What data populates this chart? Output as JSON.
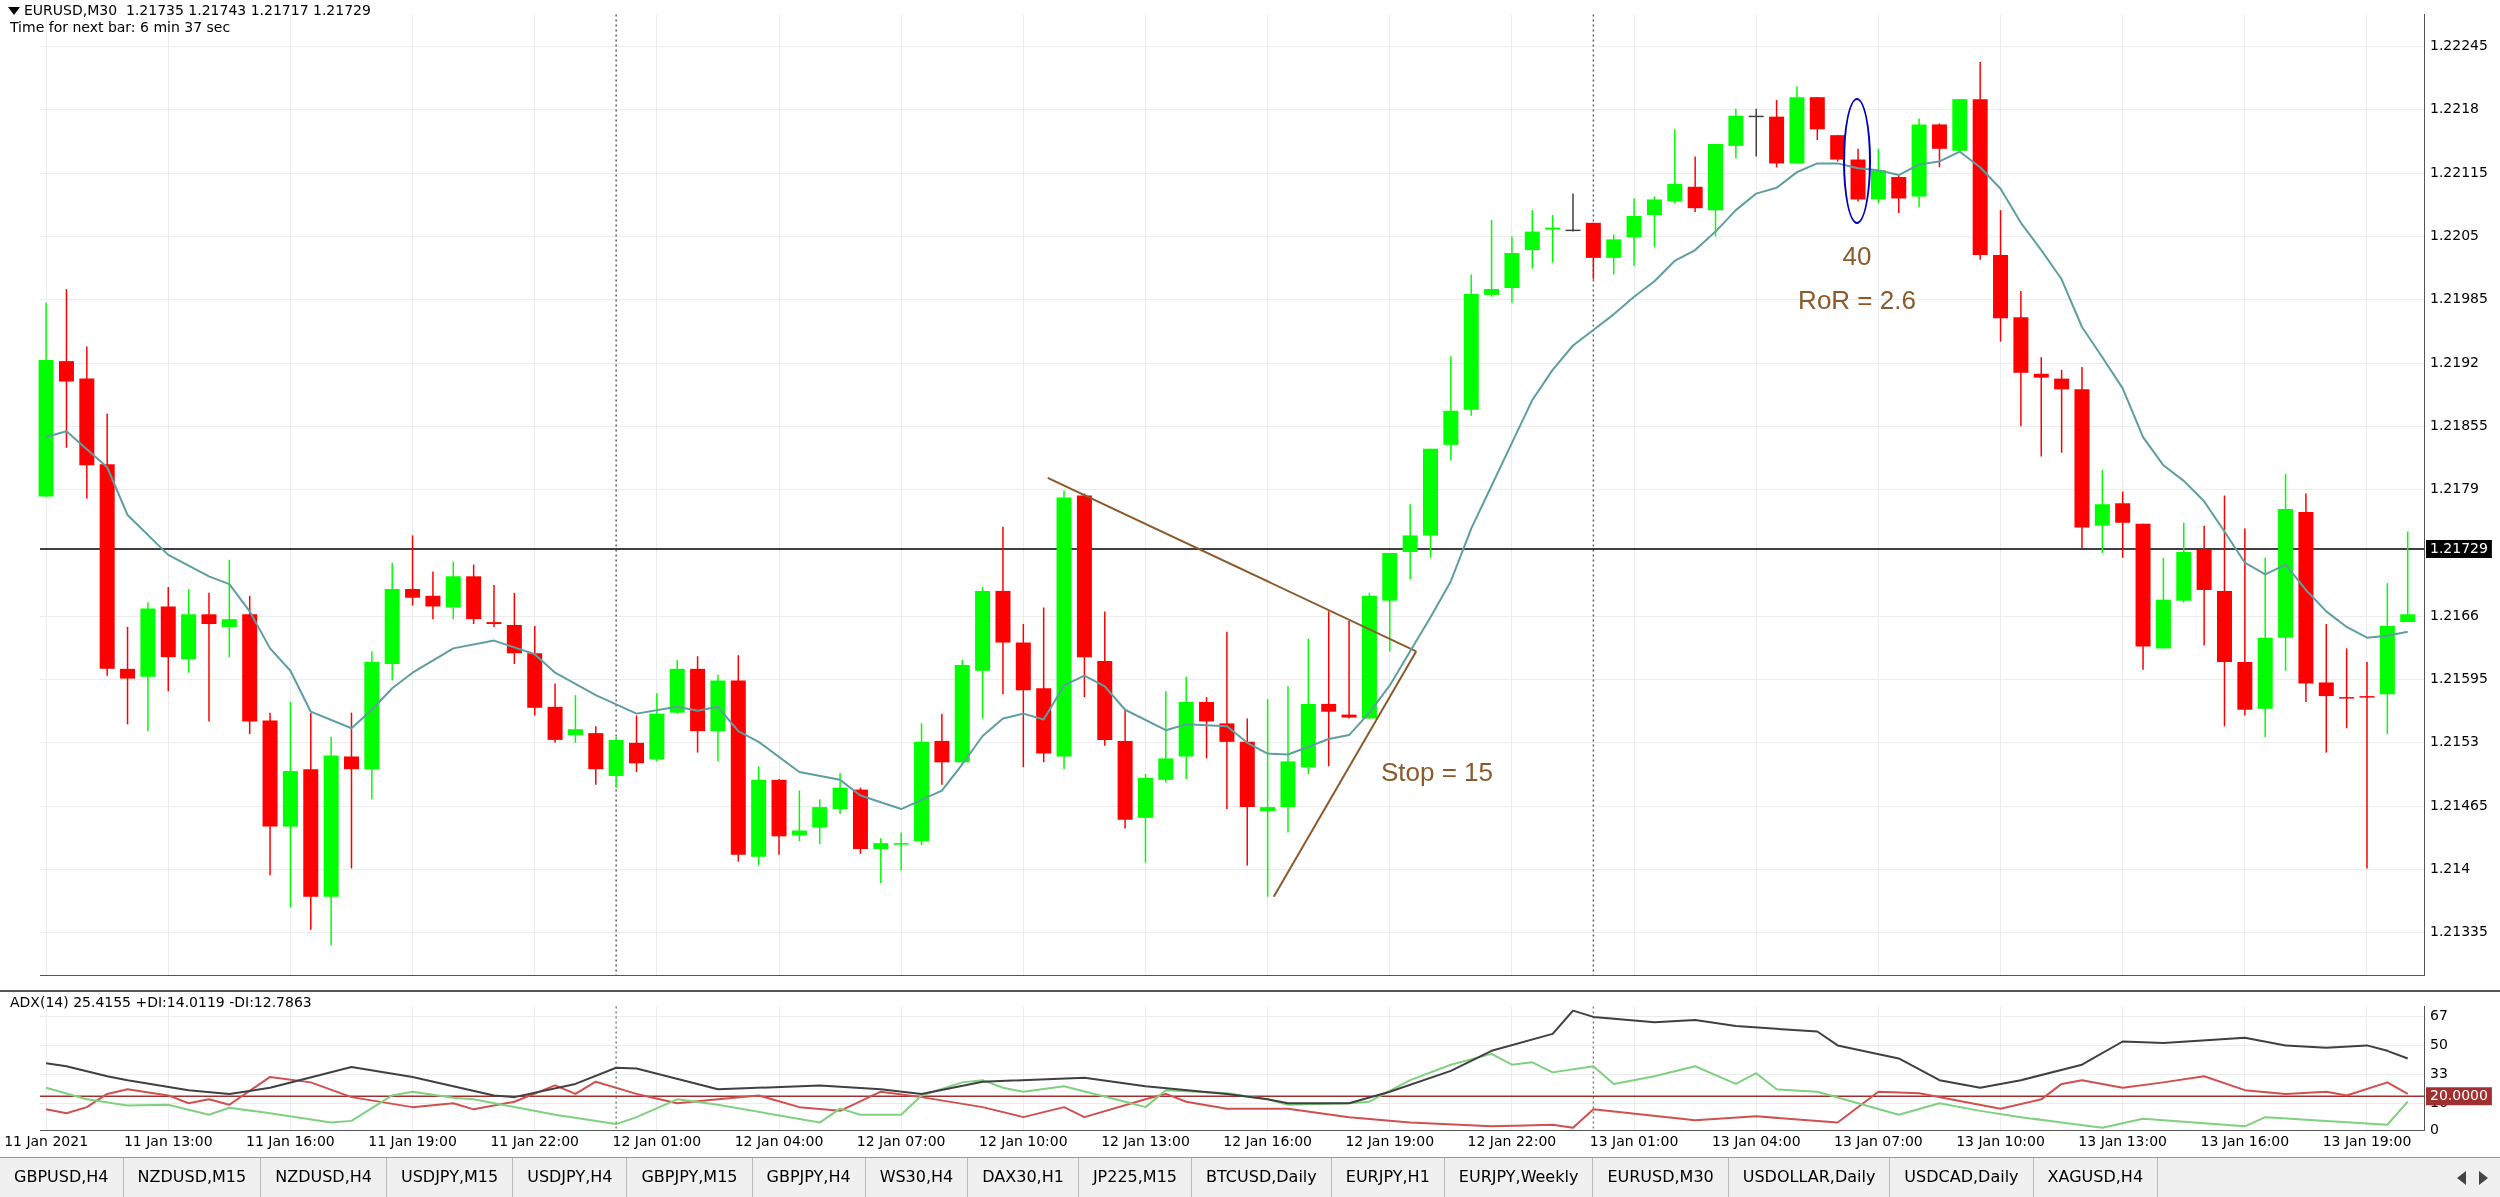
{
  "chart_data": [
    {
      "type": "candlestick",
      "title": "EURUSD,M30  1.21735 1.21743 1.21717 1.21729",
      "subtitle": "Time for next bar: 6 min 37 sec",
      "x": [
        "2021-01-11T10:00",
        "2021-01-11T10:30",
        "2021-01-11T11:00",
        "2021-01-11T11:30",
        "2021-01-11T12:00",
        "2021-01-11T12:30",
        "2021-01-11T13:00",
        "2021-01-11T13:30",
        "2021-01-11T14:00",
        "2021-01-11T14:30",
        "2021-01-11T15:00",
        "2021-01-11T15:30",
        "2021-01-11T16:00",
        "2021-01-11T16:30",
        "2021-01-11T17:00",
        "2021-01-11T17:30",
        "2021-01-11T18:00",
        "2021-01-11T18:30",
        "2021-01-11T19:00",
        "2021-01-11T19:30",
        "2021-01-11T20:00",
        "2021-01-11T20:30",
        "2021-01-11T21:00",
        "2021-01-11T21:30",
        "2021-01-11T22:00",
        "2021-01-11T22:30",
        "2021-01-11T23:00",
        "2021-01-11T23:30",
        "2021-01-12T00:00",
        "2021-01-12T00:30",
        "2021-01-12T01:00",
        "2021-01-12T01:30",
        "2021-01-12T02:00",
        "2021-01-12T02:30",
        "2021-01-12T03:00",
        "2021-01-12T03:30",
        "2021-01-12T04:00",
        "2021-01-12T04:30",
        "2021-01-12T05:00",
        "2021-01-12T05:30",
        "2021-01-12T06:00",
        "2021-01-12T06:30",
        "2021-01-12T07:00",
        "2021-01-12T07:30",
        "2021-01-12T08:00",
        "2021-01-12T08:30",
        "2021-01-12T09:00",
        "2021-01-12T09:30",
        "2021-01-12T10:00",
        "2021-01-12T10:30",
        "2021-01-12T11:00",
        "2021-01-12T11:30",
        "2021-01-12T12:00",
        "2021-01-12T12:30",
        "2021-01-12T13:00",
        "2021-01-12T13:30",
        "2021-01-12T14:00",
        "2021-01-12T14:30",
        "2021-01-12T15:00",
        "2021-01-12T15:30",
        "2021-01-12T16:00",
        "2021-01-12T16:30",
        "2021-01-12T17:00",
        "2021-01-12T17:30",
        "2021-01-12T18:00",
        "2021-01-12T18:30",
        "2021-01-12T19:00",
        "2021-01-12T19:30",
        "2021-01-12T20:00",
        "2021-01-12T20:30",
        "2021-01-12T21:00",
        "2021-01-12T21:30",
        "2021-01-12T22:00",
        "2021-01-12T22:30",
        "2021-01-12T23:00",
        "2021-01-12T23:30",
        "2021-01-13T00:00",
        "2021-01-13T00:30",
        "2021-01-13T01:00",
        "2021-01-13T01:30",
        "2021-01-13T02:00",
        "2021-01-13T02:30",
        "2021-01-13T03:00",
        "2021-01-13T03:30",
        "2021-01-13T04:00",
        "2021-01-13T04:30",
        "2021-01-13T05:00",
        "2021-01-13T05:30",
        "2021-01-13T06:00",
        "2021-01-13T06:30",
        "2021-01-13T07:00",
        "2021-01-13T07:30",
        "2021-01-13T08:00",
        "2021-01-13T08:30",
        "2021-01-13T09:00",
        "2021-01-13T09:30",
        "2021-01-13T10:00",
        "2021-01-13T10:30",
        "2021-01-13T11:00",
        "2021-01-13T11:30",
        "2021-01-13T12:00",
        "2021-01-13T12:30",
        "2021-01-13T13:00",
        "2021-01-13T13:30",
        "2021-01-13T14:00",
        "2021-01-13T14:30",
        "2021-01-13T15:00",
        "2021-01-13T15:30",
        "2021-01-13T16:00",
        "2021-01-13T16:30",
        "2021-01-13T17:00",
        "2021-01-13T17:30",
        "2021-01-13T18:00",
        "2021-01-13T18:30",
        "2021-01-13T19:00",
        "2021-01-13T19:30",
        "2021-01-13T20:00"
      ],
      "ohlc": [
        [
          1.21783,
          1.21982,
          1.21783,
          1.21923
        ],
        [
          1.21922,
          1.21996,
          1.21833,
          1.21901
        ],
        [
          1.21904,
          1.21937,
          1.21781,
          1.21815
        ],
        [
          1.21816,
          1.21868,
          1.21599,
          1.21606
        ],
        [
          1.21606,
          1.21649,
          1.21549,
          1.21596
        ],
        [
          1.21598,
          1.21674,
          1.21542,
          1.21668
        ],
        [
          1.2167,
          1.2169,
          1.21583,
          1.21618
        ],
        [
          1.21616,
          1.21688,
          1.21602,
          1.21662
        ],
        [
          1.21662,
          1.21684,
          1.21552,
          1.21652
        ],
        [
          1.21649,
          1.21718,
          1.21618,
          1.21657
        ],
        [
          1.21662,
          1.21681,
          1.21539,
          1.21552
        ],
        [
          1.21553,
          1.21561,
          1.21394,
          1.21444
        ],
        [
          1.21444,
          1.21572,
          1.21361,
          1.21501
        ],
        [
          1.21503,
          1.21561,
          1.21338,
          1.21372
        ],
        [
          1.21372,
          1.21536,
          1.21322,
          1.21517
        ],
        [
          1.21516,
          1.21561,
          1.21401,
          1.21503
        ],
        [
          1.21503,
          1.21624,
          1.21472,
          1.21613
        ],
        [
          1.21611,
          1.21715,
          1.21594,
          1.21688
        ],
        [
          1.21688,
          1.21743,
          1.21671,
          1.21679
        ],
        [
          1.21681,
          1.21706,
          1.21657,
          1.2167
        ],
        [
          1.21669,
          1.21716,
          1.21657,
          1.21701
        ],
        [
          1.21701,
          1.21713,
          1.21652,
          1.21657
        ],
        [
          1.21654,
          1.21692,
          1.21649,
          1.21652
        ],
        [
          1.21651,
          1.21684,
          1.21611,
          1.21622
        ],
        [
          1.21622,
          1.2165,
          1.21558,
          1.21566
        ],
        [
          1.21567,
          1.21591,
          1.2153,
          1.21533
        ],
        [
          1.21538,
          1.21579,
          1.2153,
          1.21544
        ],
        [
          1.2154,
          1.21547,
          1.21487,
          1.21503
        ],
        [
          1.21496,
          1.21536,
          1.21484,
          1.21533
        ],
        [
          1.2153,
          1.21558,
          1.215,
          1.21509
        ],
        [
          1.21513,
          1.21581,
          1.21511,
          1.2156
        ],
        [
          1.21561,
          1.21615,
          1.2156,
          1.21606
        ],
        [
          1.21606,
          1.21619,
          1.2152,
          1.21542
        ],
        [
          1.21542,
          1.216,
          1.21511,
          1.21594
        ],
        [
          1.21594,
          1.2162,
          1.21408,
          1.21415
        ],
        [
          1.21413,
          1.21506,
          1.21404,
          1.21492
        ],
        [
          1.21492,
          1.21493,
          1.21415,
          1.21434
        ],
        [
          1.21435,
          1.21481,
          1.21429,
          1.2144
        ],
        [
          1.21443,
          1.21472,
          1.21426,
          1.21464
        ],
        [
          1.21462,
          1.21499,
          1.21457,
          1.21484
        ],
        [
          1.21482,
          1.21484,
          1.21416,
          1.21421
        ],
        [
          1.21421,
          1.21432,
          1.21386,
          1.21427
        ],
        [
          1.21426,
          1.21438,
          1.21399,
          1.21427
        ],
        [
          1.21429,
          1.2155,
          1.21425,
          1.21531
        ],
        [
          1.21532,
          1.2156,
          1.21487,
          1.2151
        ],
        [
          1.2151,
          1.21615,
          1.21508,
          1.2161
        ],
        [
          1.21604,
          1.2169,
          1.21555,
          1.21686
        ],
        [
          1.21686,
          1.21752,
          1.2158,
          1.21633
        ],
        [
          1.21633,
          1.21652,
          1.21505,
          1.21584
        ],
        [
          1.21586,
          1.21669,
          1.2151,
          1.21519
        ],
        [
          1.21516,
          1.21789,
          1.21503,
          1.21782
        ],
        [
          1.21784,
          1.21786,
          1.21577,
          1.21618
        ],
        [
          1.21614,
          1.21665,
          1.21527,
          1.21533
        ],
        [
          1.21532,
          1.21564,
          1.21442,
          1.21451
        ],
        [
          1.21453,
          1.21498,
          1.21407,
          1.21494
        ],
        [
          1.21492,
          1.21583,
          1.21489,
          1.21514
        ],
        [
          1.21516,
          1.21598,
          1.21493,
          1.21572
        ],
        [
          1.21572,
          1.21577,
          1.21514,
          1.21552
        ],
        [
          1.2155,
          1.21644,
          1.21462,
          1.21531
        ],
        [
          1.21531,
          1.21555,
          1.21404,
          1.21464
        ],
        [
          1.2146,
          1.21575,
          1.21372,
          1.21464
        ],
        [
          1.21464,
          1.21588,
          1.21438,
          1.21511
        ],
        [
          1.21505,
          1.21637,
          1.21498,
          1.2157
        ],
        [
          1.2157,
          1.21665,
          1.21506,
          1.21562
        ],
        [
          1.21559,
          1.21655,
          1.21555,
          1.21556
        ],
        [
          1.21555,
          1.21684,
          1.21555,
          1.21681
        ],
        [
          1.21676,
          1.21725,
          1.21624,
          1.21725
        ],
        [
          1.21726,
          1.21775,
          1.21698,
          1.21743
        ],
        [
          1.21743,
          1.21832,
          1.2172,
          1.21832
        ],
        [
          1.21836,
          1.21927,
          1.2182,
          1.21871
        ],
        [
          1.21872,
          1.22011,
          1.21866,
          1.21991
        ],
        [
          1.2199,
          1.22067,
          1.21988,
          1.21996
        ],
        [
          1.21997,
          1.2205,
          1.21982,
          1.22033
        ],
        [
          1.22036,
          1.22077,
          1.22017,
          1.22055
        ],
        [
          1.22057,
          1.22072,
          1.22023,
          1.22059
        ],
        [
          1.22057,
          1.22094,
          1.22055,
          1.22057
        ],
        [
          1.22064,
          1.22064,
          1.22006,
          1.22028
        ],
        [
          1.22028,
          1.22052,
          1.22011,
          1.22047
        ],
        [
          1.22049,
          1.22089,
          1.2202,
          1.22071
        ],
        [
          1.22072,
          1.22091,
          1.22039,
          1.22088
        ],
        [
          1.22086,
          1.2216,
          1.22084,
          1.22104
        ],
        [
          1.22101,
          1.22132,
          1.22075,
          1.22079
        ],
        [
          1.22077,
          1.22145,
          1.2205,
          1.22145
        ],
        [
          1.22143,
          1.22181,
          1.2213,
          1.22174
        ],
        [
          1.22174,
          1.22181,
          1.22132,
          1.22174
        ],
        [
          1.22173,
          1.2219,
          1.22121,
          1.22125
        ],
        [
          1.22125,
          1.22204,
          1.22125,
          1.22193
        ],
        [
          1.22193,
          1.22193,
          1.22149,
          1.2216
        ],
        [
          1.22154,
          1.22154,
          1.22127,
          1.22129
        ],
        [
          1.22129,
          1.2214,
          1.22086,
          1.22088
        ],
        [
          1.22088,
          1.2214,
          1.22084,
          1.22118
        ],
        [
          1.22111,
          1.22113,
          1.22074,
          1.22089
        ],
        [
          1.22091,
          1.22171,
          1.2208,
          1.22165
        ],
        [
          1.22165,
          1.22166,
          1.22121,
          1.2214
        ],
        [
          1.22138,
          1.22191,
          1.22137,
          1.22191
        ],
        [
          1.22191,
          1.22229,
          1.22026,
          1.22031
        ],
        [
          1.22031,
          1.22077,
          1.21942,
          1.21966
        ],
        [
          1.21967,
          1.21994,
          1.21855,
          1.2191
        ],
        [
          1.21909,
          1.21926,
          1.21824,
          1.21905
        ],
        [
          1.21904,
          1.21913,
          1.21828,
          1.21893
        ],
        [
          1.21893,
          1.21916,
          1.2173,
          1.21751
        ],
        [
          1.21753,
          1.2181,
          1.21725,
          1.21775
        ],
        [
          1.21776,
          1.21788,
          1.2172,
          1.21756
        ],
        [
          1.21755,
          1.21755,
          1.21605,
          1.21629
        ],
        [
          1.21627,
          1.2172,
          1.21627,
          1.21677
        ],
        [
          1.21676,
          1.21756,
          1.21674,
          1.21726
        ],
        [
          1.21728,
          1.21753,
          1.2163,
          1.21687
        ],
        [
          1.21686,
          1.21784,
          1.21547,
          1.21613
        ],
        [
          1.21613,
          1.2175,
          1.21558,
          1.21564
        ],
        [
          1.21565,
          1.2172,
          1.21536,
          1.21638
        ],
        [
          1.21638,
          1.21806,
          1.21604,
          1.2177
        ],
        [
          1.21767,
          1.21786,
          1.21572,
          1.21591
        ],
        [
          1.21592,
          1.21652,
          1.2152,
          1.21578
        ],
        [
          1.21577,
          1.21627,
          1.21545,
          1.21576
        ],
        [
          1.21578,
          1.21613,
          1.21401,
          1.21577
        ],
        [
          1.2158,
          1.21694,
          1.21539,
          1.2165
        ],
        [
          1.21654,
          1.21747,
          1.21654,
          1.21662
        ]
      ],
      "series": [
        {
          "type": "line",
          "color": "#5f9ea0",
          "x": [
            "2021-01-11T10:00",
            "2021-01-11T10:30",
            "2021-01-11T11:30",
            "2021-01-11T12:00",
            "2021-01-11T13:00",
            "2021-01-11T14:00",
            "2021-01-11T14:30",
            "2021-01-11T15:00",
            "2021-01-11T15:30",
            "2021-01-11T16:00",
            "2021-01-11T16:30",
            "2021-01-11T17:30",
            "2021-01-11T18:00",
            "2021-01-11T18:30",
            "2021-01-11T19:00",
            "2021-01-11T20:00",
            "2021-01-11T21:00",
            "2021-01-11T22:00",
            "2021-01-11T22:30",
            "2021-01-11T23:30",
            "2021-01-12T00:30",
            "2021-01-12T01:30",
            "2021-01-12T02:00",
            "2021-01-12T02:30",
            "2021-01-12T03:00",
            "2021-01-12T03:30",
            "2021-01-12T04:30",
            "2021-01-12T05:30",
            "2021-01-12T06:00",
            "2021-01-12T07:00",
            "2021-01-12T08:00",
            "2021-01-12T08:30",
            "2021-01-12T09:00",
            "2021-01-12T09:30",
            "2021-01-12T10:00",
            "2021-01-12T10:30",
            "2021-01-12T11:00",
            "2021-01-12T11:30",
            "2021-01-12T12:00",
            "2021-01-12T12:30",
            "2021-01-12T13:30",
            "2021-01-12T14:00",
            "2021-01-12T15:00",
            "2021-01-12T15:30",
            "2021-01-12T16:00",
            "2021-01-12T16:30",
            "2021-01-12T17:30",
            "2021-01-12T18:00",
            "2021-01-12T18:30",
            "2021-01-12T19:00",
            "2021-01-12T19:30",
            "2021-01-12T20:00",
            "2021-01-12T20:30",
            "2021-01-12T21:00",
            "2021-01-12T21:30",
            "2021-01-12T22:00",
            "2021-01-12T22:30",
            "2021-01-12T23:00",
            "2021-01-12T23:30",
            "2021-01-13T00:00",
            "2021-01-13T00:30",
            "2021-01-13T01:00",
            "2021-01-13T01:30",
            "2021-01-13T02:00",
            "2021-01-13T02:30",
            "2021-01-13T03:00",
            "2021-01-13T03:30",
            "2021-01-13T04:00",
            "2021-01-13T04:30",
            "2021-01-13T05:00",
            "2021-01-13T05:30",
            "2021-01-13T06:00",
            "2021-01-13T06:30",
            "2021-01-13T07:00",
            "2021-01-13T07:30",
            "2021-01-13T08:00",
            "2021-01-13T08:30",
            "2021-01-13T09:00",
            "2021-01-13T09:30",
            "2021-01-13T10:00",
            "2021-01-13T10:30",
            "2021-01-13T11:00",
            "2021-01-13T11:30",
            "2021-01-13T12:00",
            "2021-01-13T12:30",
            "2021-01-13T13:00",
            "2021-01-13T13:30",
            "2021-01-13T14:00",
            "2021-01-13T14:30",
            "2021-01-13T15:00",
            "2021-01-13T15:30",
            "2021-01-13T16:00",
            "2021-01-13T16:30",
            "2021-01-13T17:00",
            "2021-01-13T17:30",
            "2021-01-13T18:00",
            "2021-01-13T18:30",
            "2021-01-13T19:00",
            "2021-01-13T19:30",
            "2021-01-13T20:00"
          ],
          "values": [
            1.21844,
            1.2185,
            1.21813,
            1.21764,
            1.21723,
            1.21701,
            1.21693,
            1.21665,
            1.21627,
            1.21604,
            1.21562,
            1.21545,
            1.21564,
            1.21586,
            1.21602,
            1.21627,
            1.21635,
            1.21621,
            1.21602,
            1.21579,
            1.2156,
            1.21567,
            1.21563,
            1.21567,
            1.21542,
            1.21531,
            1.215,
            1.21492,
            1.21476,
            1.21462,
            1.21481,
            1.21508,
            1.21537,
            1.21555,
            1.2156,
            1.21554,
            1.21589,
            1.21599,
            1.21588,
            1.21564,
            1.21543,
            1.21549,
            1.21547,
            1.2153,
            1.21519,
            1.21518,
            1.21534,
            1.21538,
            1.21561,
            1.21589,
            1.21624,
            1.21659,
            1.21696,
            1.2175,
            1.21794,
            1.21838,
            1.21882,
            1.21913,
            1.21938,
            1.21954,
            1.2197,
            1.21988,
            1.22004,
            1.22025,
            1.22036,
            1.22055,
            1.22077,
            1.22094,
            1.221,
            1.22116,
            1.22125,
            1.22125,
            1.2212,
            1.22118,
            1.22113,
            1.22124,
            1.22127,
            1.22137,
            1.22121,
            1.22099,
            1.22064,
            1.22036,
            1.22006,
            1.21957,
            1.21926,
            1.21894,
            1.21844,
            1.21815,
            1.21799,
            1.21778,
            1.21747,
            1.21715,
            1.21703,
            1.21713,
            1.21687,
            1.21665,
            1.21649,
            1.21638,
            1.2164,
            1.21644
          ]
        },
        {
          "type": "line",
          "color": "#8b5a2b",
          "x": [
            "2021-01-12T10:36",
            "2021-01-12T19:39"
          ],
          "values": [
            1.21802,
            1.21624
          ]
        },
        {
          "type": "line",
          "color": "#8b5a2b",
          "x": [
            "2021-01-12T16:09",
            "2021-01-12T19:39"
          ],
          "values": [
            1.21372,
            1.21624
          ]
        }
      ],
      "xlim": [
        "2021-01-11T09:51",
        "2021-01-13T20:24"
      ],
      "xticks": [
        {
          "value": "2021-01-11T10:00",
          "label": null
        },
        {
          "value": "2021-01-11T13:00",
          "label": null
        },
        {
          "value": "2021-01-11T16:00",
          "label": null
        },
        {
          "value": "2021-01-11T19:00",
          "label": null
        },
        {
          "value": "2021-01-11T22:00",
          "label": null
        },
        {
          "value": "2021-01-12T01:00",
          "label": null
        },
        {
          "value": "2021-01-12T04:00",
          "label": null
        },
        {
          "value": "2021-01-12T07:00",
          "label": null
        },
        {
          "value": "2021-01-12T10:00",
          "label": null
        },
        {
          "value": "2021-01-12T13:00",
          "label": null
        },
        {
          "value": "2021-01-12T16:00",
          "label": null
        },
        {
          "value": "2021-01-12T19:00",
          "label": null
        },
        {
          "value": "2021-01-12T22:00",
          "label": null
        },
        {
          "value": "2021-01-13T01:00",
          "label": null
        },
        {
          "value": "2021-01-13T04:00",
          "label": null
        },
        {
          "value": "2021-01-13T07:00",
          "label": null
        },
        {
          "value": "2021-01-13T10:00",
          "label": null
        },
        {
          "value": "2021-01-13T13:00",
          "label": null
        },
        {
          "value": "2021-01-13T16:00",
          "label": null
        },
        {
          "value": "2021-01-13T19:00",
          "label": null
        }
      ],
      "ylim": [
        1.21291,
        1.22278
      ],
      "yticks": [
        1.21335,
        1.214,
        1.21465,
        1.2153,
        1.21595,
        1.2166,
        1.2179,
        1.21855,
        1.2192,
        1.21985,
        1.2205,
        1.22115,
        1.2218,
        1.22245
      ],
      "ref_lines": [
        {
          "axis": "x",
          "value": "2021-01-12T00:00",
          "color": "#606060",
          "line_style": "dotted"
        },
        {
          "axis": "x",
          "value": "2021-01-13T00:00",
          "color": "#606060",
          "line_style": "dotted"
        },
        {
          "axis": "y",
          "value": 1.21729,
          "label": "1.21729",
          "color": "#000000"
        }
      ],
      "annotations": [
        "Stop = 15",
        "40",
        "RoR = 2.6",
        "GBPUSD,H4",
        "NZDUSD,M15",
        "NZDUSD,H4",
        "USDJPY,M15",
        "USDJPY,H4",
        "GBPJPY,M15",
        "GBPJPY,H4",
        "WS30,H4",
        "DAX30,H1",
        "JP225,M15",
        "BTCUSD,Daily",
        "EURJPY,H1",
        "EURJPY,Weekly",
        "EURUSD,M30",
        "USDOLLAR,Daily",
        "USDCAD,Daily",
        "XAGUSD,H4"
      ],
      "grid": true,
      "marker": "none",
      "tick_labels": "y"
    },
    {
      "type": "line",
      "title": "ADX(14) 25.4155 +DI:14.0119 -DI:12.7863",
      "series": [
        {
          "color": "#404040",
          "x": [
            "2021-01-11T10:00",
            "2021-01-11T10:30",
            "2021-01-11T11:30",
            "2021-01-11T12:00",
            "2021-01-11T13:30",
            "2021-01-11T14:30",
            "2021-01-11T15:30",
            "2021-01-11T17:30",
            "2021-01-11T19:00",
            "2021-01-11T20:00",
            "2021-01-11T21:00",
            "2021-01-11T21:30",
            "2021-01-11T23:00",
            "2021-01-12T00:00",
            "2021-01-12T00:30",
            "2021-01-12T02:30",
            "2021-01-12T05:00",
            "2021-01-12T06:30",
            "2021-01-12T07:30",
            "2021-01-12T09:00",
            "2021-01-12T11:30",
            "2021-01-12T13:00",
            "2021-01-12T15:00",
            "2021-01-12T16:00",
            "2021-01-12T16:30",
            "2021-01-12T18:00",
            "2021-01-12T19:00",
            "2021-01-12T20:30",
            "2021-01-12T21:30",
            "2021-01-12T23:00",
            "2021-01-12T23:30",
            "2021-01-13T00:00",
            "2021-01-13T01:30",
            "2021-01-13T02:30",
            "2021-01-13T03:30",
            "2021-01-13T05:30",
            "2021-01-13T06:00",
            "2021-01-13T07:30",
            "2021-01-13T08:30",
            "2021-01-13T09:30",
            "2021-01-13T10:30",
            "2021-01-13T12:00",
            "2021-01-13T13:00",
            "2021-01-13T14:00",
            "2021-01-13T16:00",
            "2021-01-13T17:00",
            "2021-01-13T18:00",
            "2021-01-13T19:00",
            "2021-01-13T19:30",
            "2021-01-13T20:00"
          ],
          "values": [
            39.5,
            37.7,
            31.8,
            29.5,
            23.6,
            21.4,
            25,
            37.3,
            31.4,
            25.9,
            20.5,
            19.5,
            27.3,
            36.8,
            36.4,
            24.1,
            26.4,
            24.1,
            21.4,
            28.6,
            30.9,
            25.9,
            21.4,
            18.2,
            15.9,
            15.9,
            22.7,
            35,
            46.8,
            56.8,
            70.5,
            66.8,
            63.6,
            65,
            61.4,
            58.2,
            50,
            42.3,
            29.5,
            25,
            29.5,
            38.6,
            52.3,
            51.4,
            54.5,
            50,
            48.6,
            50,
            46.8,
            42.3
          ]
        },
        {
          "color": "#80d080",
          "x": [
            "2021-01-11T10:00",
            "2021-01-11T11:00",
            "2021-01-11T12:00",
            "2021-01-11T13:00",
            "2021-01-11T14:00",
            "2021-01-11T14:30",
            "2021-01-11T15:30",
            "2021-01-11T17:00",
            "2021-01-11T17:30",
            "2021-01-11T18:30",
            "2021-01-11T19:00",
            "2021-01-11T20:00",
            "2021-01-11T20:30",
            "2021-01-11T22:30",
            "2021-01-12T00:00",
            "2021-01-12T00:30",
            "2021-01-12T01:30",
            "2021-01-12T02:30",
            "2021-01-12T05:00",
            "2021-01-12T05:30",
            "2021-01-12T06:00",
            "2021-01-12T07:00",
            "2021-01-12T07:30",
            "2021-01-12T08:30",
            "2021-01-12T09:00",
            "2021-01-12T09:30",
            "2021-01-12T10:00",
            "2021-01-12T11:00",
            "2021-01-12T12:30",
            "2021-01-12T13:00",
            "2021-01-12T13:30",
            "2021-01-12T15:00",
            "2021-01-12T16:00",
            "2021-01-12T16:30",
            "2021-01-12T18:00",
            "2021-01-12T18:30",
            "2021-01-12T19:30",
            "2021-01-12T20:30",
            "2021-01-12T21:30",
            "2021-01-12T22:00",
            "2021-01-12T22:30",
            "2021-01-12T23:00",
            "2021-01-13T00:00",
            "2021-01-13T00:30",
            "2021-01-13T01:30",
            "2021-01-13T02:30",
            "2021-01-13T03:30",
            "2021-01-13T04:00",
            "2021-01-13T04:30",
            "2021-01-13T05:30",
            "2021-01-13T06:30",
            "2021-01-13T07:30",
            "2021-01-13T08:30",
            "2021-01-13T09:30",
            "2021-01-13T10:30",
            "2021-01-13T11:30",
            "2021-01-13T12:30",
            "2021-01-13T13:30",
            "2021-01-13T16:00",
            "2021-01-13T16:30",
            "2021-01-13T19:30",
            "2021-01-13T20:00"
          ],
          "values": [
            25,
            18.2,
            14.5,
            15,
            9.1,
            13.2,
            10,
            4.5,
            5.5,
            20.5,
            22.7,
            19.1,
            18.2,
            9.1,
            3.6,
            7.7,
            18.2,
            15,
            4.5,
            12.7,
            9.1,
            9.1,
            20.5,
            28.2,
            29.5,
            25,
            22.7,
            25.9,
            16.8,
            13.6,
            23.6,
            21.8,
            18.2,
            15,
            15.9,
            16.8,
            29.5,
            38.6,
            45,
            38.6,
            40,
            34.1,
            37.7,
            27.3,
            31.8,
            37.7,
            27.3,
            33.6,
            24.1,
            22.7,
            15.9,
            9.1,
            15.9,
            11.4,
            7.7,
            4.5,
            1.4,
            6.8,
            2.3,
            7.7,
            3.2,
            16.8
          ]
        },
        {
          "color": "#d05050",
          "x": [
            "2021-01-11T10:00",
            "2021-01-11T10:30",
            "2021-01-11T11:00",
            "2021-01-11T11:30",
            "2021-01-11T12:00",
            "2021-01-11T13:00",
            "2021-01-11T13:30",
            "2021-01-11T14:00",
            "2021-01-11T14:30",
            "2021-01-11T15:30",
            "2021-01-11T16:30",
            "2021-01-11T17:30",
            "2021-01-11T19:00",
            "2021-01-11T20:00",
            "2021-01-11T20:30",
            "2021-01-11T21:30",
            "2021-01-11T22:30",
            "2021-01-11T23:00",
            "2021-01-11T23:30",
            "2021-01-12T00:30",
            "2021-01-12T01:30",
            "2021-01-12T02:30",
            "2021-01-12T03:30",
            "2021-01-12T04:30",
            "2021-01-12T05:30",
            "2021-01-12T06:30",
            "2021-01-12T07:30",
            "2021-01-12T09:00",
            "2021-01-12T10:00",
            "2021-01-12T11:00",
            "2021-01-12T11:30",
            "2021-01-12T13:00",
            "2021-01-12T13:30",
            "2021-01-12T14:00",
            "2021-01-12T15:00",
            "2021-01-12T16:30",
            "2021-01-12T18:00",
            "2021-01-12T19:30",
            "2021-01-12T21:30",
            "2021-01-12T23:00",
            "2021-01-12T23:30",
            "2021-01-13T00:00",
            "2021-01-13T02:30",
            "2021-01-13T04:00",
            "2021-01-13T06:00",
            "2021-01-13T07:00",
            "2021-01-13T08:00",
            "2021-01-13T10:00",
            "2021-01-13T11:00",
            "2021-01-13T11:30",
            "2021-01-13T12:00",
            "2021-01-13T13:00",
            "2021-01-13T14:00",
            "2021-01-13T15:00",
            "2021-01-13T16:00",
            "2021-01-13T17:00",
            "2021-01-13T18:00",
            "2021-01-13T18:30",
            "2021-01-13T19:30",
            "2021-01-13T20:00"
          ],
          "values": [
            12.3,
            10,
            13.6,
            21.4,
            24.1,
            20.5,
            15.9,
            18.2,
            15,
            31.4,
            28.2,
            19.5,
            13.6,
            15.9,
            12.3,
            16.8,
            26.4,
            21.4,
            28.6,
            21.4,
            15.9,
            18.2,
            20.5,
            13.6,
            11.4,
            22.7,
            19.5,
            13.6,
            7.7,
            13.6,
            7.7,
            18.2,
            21.4,
            16.8,
            12.7,
            12.7,
            7.7,
            4.5,
            2.3,
            3.2,
            1.4,
            12.3,
            5.9,
            8.2,
            4.5,
            22.7,
            21.8,
            12.7,
            18.2,
            27.3,
            29.5,
            25,
            28.2,
            31.8,
            23.6,
            21.4,
            22.7,
            20.5,
            28.2,
            21.4
          ]
        }
      ],
      "xlim": [
        "2021-01-11T09:51",
        "2021-01-13T20:24"
      ],
      "xticks": [
        {
          "value": "2021-01-11T10:00",
          "label": "11 Jan 2021"
        },
        {
          "value": "2021-01-11T13:00",
          "label": "11 Jan 13:00"
        },
        {
          "value": "2021-01-11T16:00",
          "label": "11 Jan 16:00"
        },
        {
          "value": "2021-01-11T19:00",
          "label": "11 Jan 19:00"
        },
        {
          "value": "2021-01-11T22:00",
          "label": "11 Jan 22:00"
        },
        {
          "value": "2021-01-12T01:00",
          "label": "12 Jan 01:00"
        },
        {
          "value": "2021-01-12T04:00",
          "label": "12 Jan 04:00"
        },
        {
          "value": "2021-01-12T07:00",
          "label": "12 Jan 07:00"
        },
        {
          "value": "2021-01-12T10:00",
          "label": "12 Jan 10:00"
        },
        {
          "value": "2021-01-12T13:00",
          "label": "12 Jan 13:00"
        },
        {
          "value": "2021-01-12T16:00",
          "label": "12 Jan 16:00"
        },
        {
          "value": "2021-01-12T19:00",
          "label": "12 Jan 19:00"
        },
        {
          "value": "2021-01-12T22:00",
          "label": "12 Jan 22:00"
        },
        {
          "value": "2021-01-13T01:00",
          "label": "13 Jan 01:00"
        },
        {
          "value": "2021-01-13T04:00",
          "label": "13 Jan 04:00"
        },
        {
          "value": "2021-01-13T07:00",
          "label": "13 Jan 07:00"
        },
        {
          "value": "2021-01-13T10:00",
          "label": "13 Jan 10:00"
        },
        {
          "value": "2021-01-13T13:00",
          "label": "13 Jan 13:00"
        },
        {
          "value": "2021-01-13T16:00",
          "label": "13 Jan 16:00"
        },
        {
          "value": "2021-01-13T19:00",
          "label": "13 Jan 19:00"
        }
      ],
      "ylim": [
        0,
        73
      ],
      "yticks": [
        0,
        16,
        33,
        50,
        67
      ],
      "ref_lines": [
        {
          "axis": "x",
          "value": "2021-01-12T00:00",
          "color": "#808080",
          "line_style": "dotted"
        },
        {
          "axis": "x",
          "value": "2021-01-13T00:00",
          "color": "#808080",
          "line_style": "dotted"
        },
        {
          "axis": "y",
          "value": 20,
          "label": "20.0000",
          "color": "#a03030"
        }
      ],
      "grid": true,
      "marker": "none"
    }
  ]
}
